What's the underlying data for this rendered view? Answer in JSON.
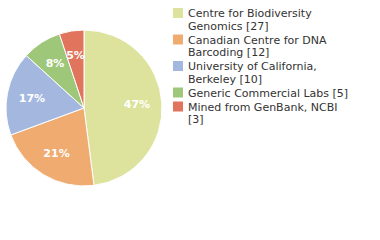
{
  "chart_data": {
    "type": "pie",
    "categories": [
      "Centre for Biodiversity Genomics [27]",
      "Canadian Centre for DNA Barcoding [12]",
      "University of California, Berkeley [10]",
      "Generic Commercial Labs [5]",
      "Mined from GenBank, NCBI [3]"
    ],
    "values": [
      47,
      21,
      17,
      8,
      5
    ],
    "value_labels": [
      "47%",
      "21%",
      "17%",
      "8%",
      "5%"
    ],
    "colors": [
      "#dde39c",
      "#f0ab70",
      "#a4b8df",
      "#9fc77a",
      "#e0745c"
    ],
    "data_labels": true,
    "legend": "right"
  }
}
